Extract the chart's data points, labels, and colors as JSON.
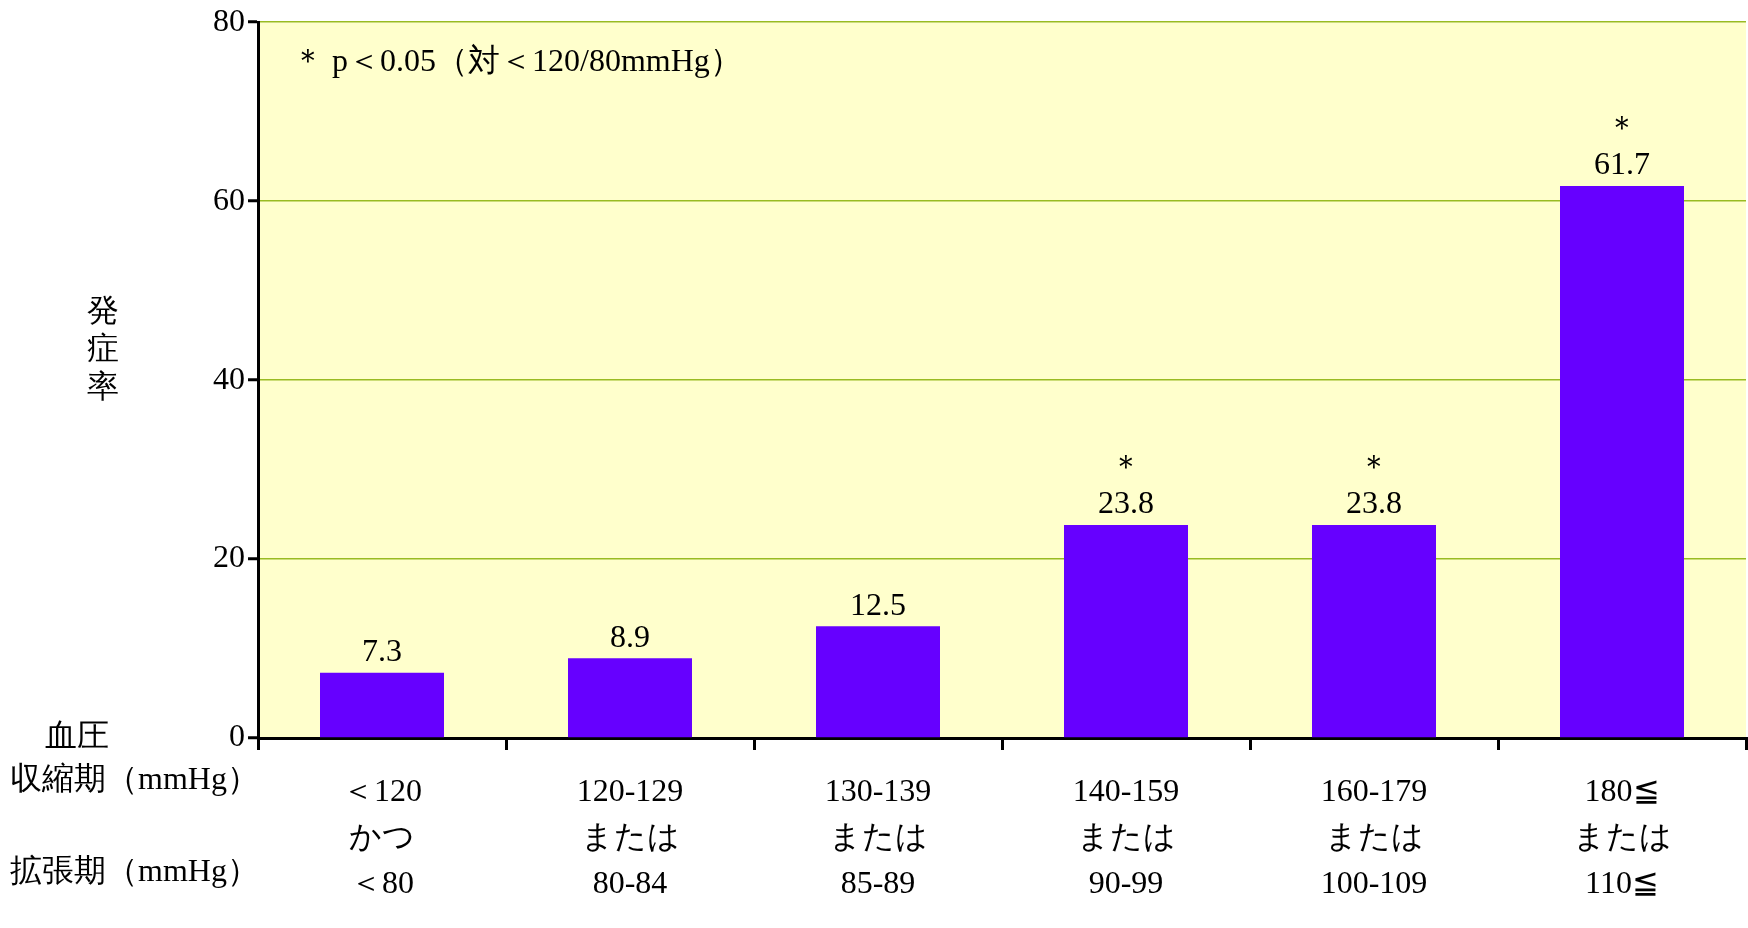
{
  "chart_data": {
    "type": "bar",
    "ylabel": "発症率",
    "categories": [
      "＜120かつ＜80",
      "120-129または80-84",
      "130-139または85-89",
      "140-159または90-99",
      "160-179または100-109",
      "180≦または110≦"
    ],
    "values": [
      7.3,
      8.9,
      12.5,
      23.8,
      23.8,
      61.7
    ],
    "color": "#6600ff",
    "ylim": [
      0,
      80
    ],
    "yticks": [
      0,
      20,
      40,
      60,
      80
    ],
    "grid": "y",
    "legend": false,
    "data_labels": true,
    "annotations": [
      "＊ p＜0.05（対＜120/80mmHg）",
      "血圧",
      "収縮期（mmHg）",
      "拡張期（mmHg）",
      {
        "text": "＊",
        "x": "140-159または90-99",
        "y": 23.8
      },
      {
        "text": "＊",
        "x": "160-179または100-109",
        "y": 23.8
      },
      {
        "text": "＊",
        "x": "180≦または110≦",
        "y": 61.7
      }
    ]
  }
}
